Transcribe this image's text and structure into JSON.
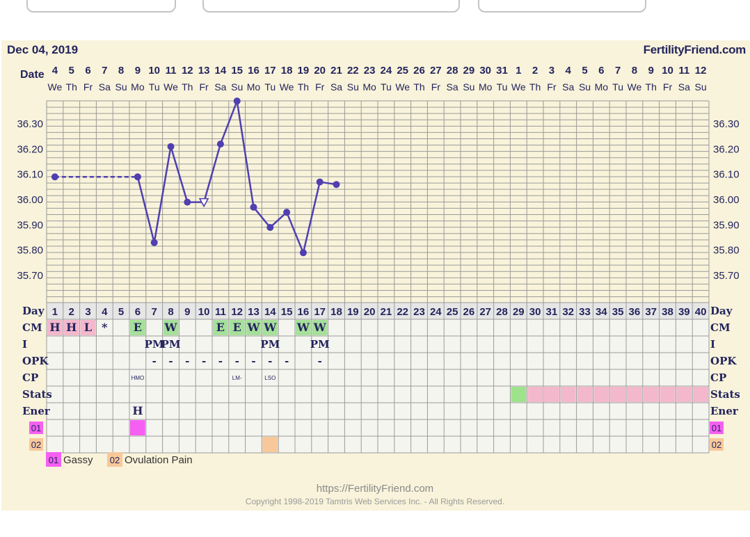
{
  "header": {
    "date_label": "Dec 04, 2019",
    "brand": "FertilityFriend.com"
  },
  "footer": {
    "url": "https://FertilityFriend.com",
    "copyright": "Copyright 1998-2019 Tamtris Web Services Inc. - All Rights Reserved."
  },
  "colors": {
    "line": "#4f3fb0",
    "card_bg": "#f8f3da",
    "grid": "#9a9a9a",
    "cm_h": "#f3b8cc",
    "cm_e": "#a6e09a",
    "stats_green": "#9ee28c",
    "stats_pink": "#f3b8cc",
    "sym01": "#f560f2",
    "sym02": "#f8c89a",
    "text": "#24245e"
  },
  "chart_data": {
    "type": "line",
    "title": "",
    "date_row_label": "Date",
    "dates": [
      "4",
      "5",
      "6",
      "7",
      "8",
      "9",
      "10",
      "11",
      "12",
      "13",
      "14",
      "15",
      "16",
      "17",
      "18",
      "19",
      "20",
      "21",
      "22",
      "23",
      "24",
      "25",
      "26",
      "27",
      "28",
      "29",
      "30",
      "31",
      "1",
      "2",
      "3",
      "4",
      "5",
      "6",
      "7",
      "8",
      "9",
      "10",
      "11",
      "12"
    ],
    "weekdays": [
      "We",
      "Th",
      "Fr",
      "Sa",
      "Su",
      "Mo",
      "Tu",
      "We",
      "Th",
      "Fr",
      "Sa",
      "Su",
      "Mo",
      "Tu",
      "We",
      "Th",
      "Fr",
      "Sa",
      "Su",
      "Mo",
      "Tu",
      "We",
      "Th",
      "Fr",
      "Sa",
      "Su",
      "Mo",
      "Tu",
      "We",
      "Th",
      "Fr",
      "Sa",
      "Su",
      "Mo",
      "Tu",
      "We",
      "Th",
      "Fr",
      "Sa",
      "Su"
    ],
    "y_ticks": [
      "36.30",
      "36.20",
      "36.10",
      "36.00",
      "35.90",
      "35.80",
      "35.70"
    ],
    "ylim": [
      35.62,
      36.4
    ],
    "temperatures": [
      {
        "day": 1,
        "temp": 36.09
      },
      {
        "day": 6,
        "temp": 36.09
      },
      {
        "day": 7,
        "temp": 35.83
      },
      {
        "day": 8,
        "temp": 36.21
      },
      {
        "day": 9,
        "temp": 35.99
      },
      {
        "day": 10,
        "temp": 35.99,
        "open": true
      },
      {
        "day": 11,
        "temp": 36.22
      },
      {
        "day": 12,
        "temp": 36.39
      },
      {
        "day": 13,
        "temp": 35.97
      },
      {
        "day": 14,
        "temp": 35.89
      },
      {
        "day": 15,
        "temp": 35.95
      },
      {
        "day": 16,
        "temp": 35.79
      },
      {
        "day": 17,
        "temp": 36.07
      },
      {
        "day": 18,
        "temp": 36.06
      }
    ],
    "dashed_gap": [
      1,
      6
    ],
    "rows": {
      "day_label": "Day",
      "labels": [
        "CM",
        "I",
        "OPK",
        "CP",
        "Stats",
        "Ener"
      ],
      "days": [
        "1",
        "2",
        "3",
        "4",
        "5",
        "6",
        "7",
        "8",
        "9",
        "10",
        "11",
        "12",
        "13",
        "14",
        "15",
        "16",
        "17",
        "18",
        "19",
        "20",
        "21",
        "22",
        "23",
        "24",
        "25",
        "26",
        "27",
        "28",
        "29",
        "30",
        "31",
        "32",
        "33",
        "34",
        "35",
        "36",
        "37",
        "38",
        "39",
        "40"
      ],
      "cm": [
        {
          "day": 1,
          "text": "H",
          "color": "cm_h"
        },
        {
          "day": 2,
          "text": "H",
          "color": "cm_h"
        },
        {
          "day": 3,
          "text": "L",
          "color": "cm_h"
        },
        {
          "day": 4,
          "text": "*"
        },
        {
          "day": 6,
          "text": "E",
          "color": "cm_e"
        },
        {
          "day": 8,
          "text": "W",
          "color": "cm_e"
        },
        {
          "day": 11,
          "text": "E",
          "color": "cm_e"
        },
        {
          "day": 12,
          "text": "E",
          "color": "cm_e"
        },
        {
          "day": 13,
          "text": "W",
          "color": "cm_e"
        },
        {
          "day": 14,
          "text": "W",
          "color": "cm_e"
        },
        {
          "day": 16,
          "text": "W",
          "color": "cm_e"
        },
        {
          "day": 17,
          "text": "W",
          "color": "cm_e"
        }
      ],
      "intercourse": [
        {
          "day": 7,
          "text": "PM"
        },
        {
          "day": 8,
          "text": "PM"
        },
        {
          "day": 14,
          "text": "PM"
        },
        {
          "day": 17,
          "text": "PM"
        }
      ],
      "opk": [
        {
          "day": 7,
          "text": "-"
        },
        {
          "day": 8,
          "text": "-"
        },
        {
          "day": 9,
          "text": "-"
        },
        {
          "day": 10,
          "text": "-"
        },
        {
          "day": 11,
          "text": "-"
        },
        {
          "day": 12,
          "text": "-"
        },
        {
          "day": 13,
          "text": "-"
        },
        {
          "day": 14,
          "text": "-"
        },
        {
          "day": 15,
          "text": "-"
        },
        {
          "day": 17,
          "text": "-"
        }
      ],
      "cp": [
        {
          "day": 6,
          "text": "HMO"
        },
        {
          "day": 12,
          "text": "LM-"
        },
        {
          "day": 14,
          "text": "LSO"
        }
      ],
      "stats_green_days": [
        29
      ],
      "stats_pink_from": 30,
      "energy": [
        {
          "day": 6,
          "text": "H"
        }
      ],
      "symptom_rows": [
        {
          "code": "01",
          "color": "sym01",
          "days": [
            6
          ]
        },
        {
          "code": "02",
          "color": "sym02",
          "days": [
            14
          ]
        }
      ]
    },
    "legend": [
      {
        "code": "01",
        "label": "Gassy",
        "color": "sym01"
      },
      {
        "code": "02",
        "label": "Ovulation Pain",
        "color": "sym02"
      }
    ]
  }
}
